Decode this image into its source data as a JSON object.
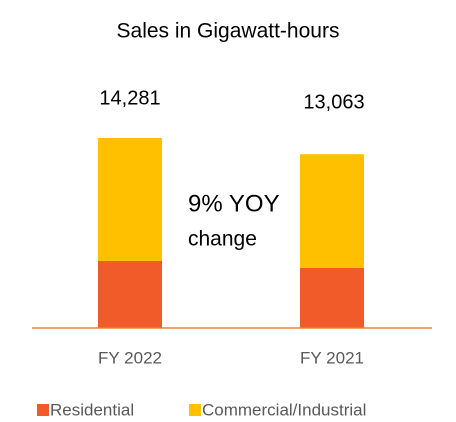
{
  "chart_data": {
    "type": "stacked_bar",
    "title": "Sales in Gigawatt-hours",
    "categories": [
      "FY 2022",
      "FY 2021"
    ],
    "series": [
      {
        "name": "Residential",
        "color": "#f15a29",
        "values": [
          5040,
          4530
        ]
      },
      {
        "name": "Commercial/Industrial",
        "color": "#ffc000",
        "values": [
          9241,
          8533
        ]
      }
    ],
    "totals": [
      14281,
      13063
    ],
    "total_labels": [
      "14,281",
      "13,063"
    ],
    "annotations": [
      "9% YOY",
      "change"
    ],
    "legend": "bottom"
  }
}
